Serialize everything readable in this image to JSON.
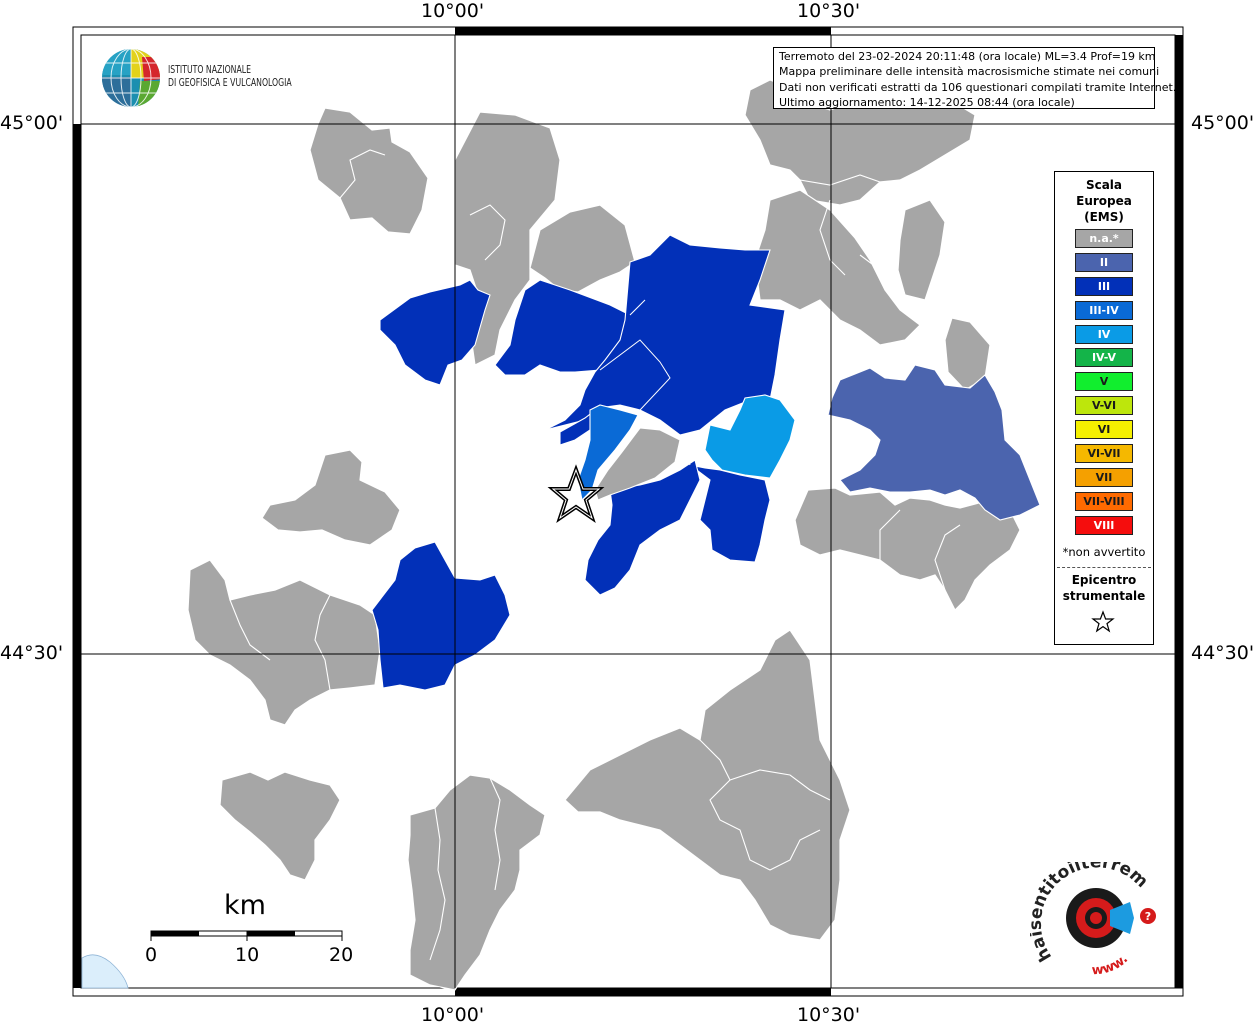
{
  "map": {
    "ticks": {
      "lon": [
        "10°00'",
        "10°30'"
      ],
      "lat": [
        "45°00'",
        "44°30'"
      ]
    },
    "info": [
      "Terremoto del 23-02-2024 20:11:48 (ora locale) ML=3.4 Prof=19 km",
      "Mappa preliminare delle intensità macrosismiche stimate nei comuni",
      "Dati non verificati estratti da 106 questionari compilati tramite Internet.",
      "Ultimo aggiornamento: 14-12-2025 08:44 (ora locale)"
    ],
    "logo": {
      "line1": "ISTITUTO NAZIONALE",
      "line2": "DI GEOFISICA E VULCANOLOGIA"
    },
    "colors": {
      "na": "#a6a6a6",
      "II": "#4b64ae",
      "III": "#0230b8",
      "III-IV": "#0a6ad6",
      "IV": "#0a9be6"
    },
    "legend": {
      "title": [
        "Scala",
        "Europea",
        "(EMS)"
      ],
      "items": [
        {
          "label": "n.a.*",
          "color": "#a6a6a6"
        },
        {
          "label": "II",
          "color": "#4b64ae"
        },
        {
          "label": "III",
          "color": "#0230b8"
        },
        {
          "label": "III-IV",
          "color": "#0a6ad6"
        },
        {
          "label": "IV",
          "color": "#0a9be6"
        },
        {
          "label": "IV-V",
          "color": "#14b449"
        },
        {
          "label": "V",
          "color": "#11ee2e"
        },
        {
          "label": "V-VI",
          "color": "#bde60c"
        },
        {
          "label": "VI",
          "color": "#f5f000"
        },
        {
          "label": "VI-VII",
          "color": "#f5b800"
        },
        {
          "label": "VII",
          "color": "#f5a000"
        },
        {
          "label": "VII-VIII",
          "color": "#ff6a00"
        },
        {
          "label": "VIII",
          "color": "#f50d0d"
        }
      ],
      "note": "*non avvertito",
      "epicenter": [
        "Epicentro",
        "strumentale"
      ]
    },
    "scale": {
      "unit": "km",
      "labels": [
        "0",
        "10",
        "20"
      ]
    },
    "hst": {
      "text": "haisentitoilterremoto.it",
      "prefix": "www."
    }
  }
}
